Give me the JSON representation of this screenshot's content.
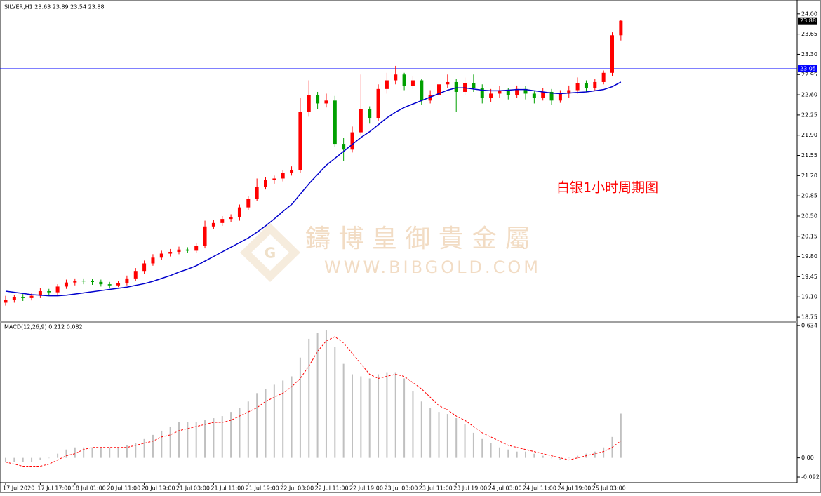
{
  "chart_data": [
    {
      "type": "candlestick",
      "title": "SILVER,H1  23.63 23.89 23.54 23.88",
      "annotation": "白银1小时周期图",
      "watermark_title": "鑄 博 皇 御 貴 金 屬",
      "watermark_url": "WWW.BIBGOLD.COM",
      "up_color": "#ff0000",
      "down_color": "#00a000",
      "open": [
        19.0,
        19.05,
        19.1,
        19.08,
        19.12,
        19.2,
        19.18,
        19.28,
        19.35,
        19.38,
        19.37,
        19.36,
        19.32,
        19.3,
        19.34,
        19.42,
        19.55,
        19.68,
        19.78,
        19.85,
        19.88,
        19.92,
        19.9,
        19.98,
        20.32,
        20.38,
        20.45,
        20.48,
        20.65,
        20.8,
        21.0,
        21.12,
        21.15,
        21.25,
        21.3,
        22.3,
        22.6,
        22.45,
        22.5,
        21.75,
        21.65,
        21.95,
        22.35,
        22.2,
        22.7,
        22.85,
        22.95,
        22.75,
        22.85,
        22.5,
        22.6,
        22.78,
        22.82,
        22.65,
        22.8,
        22.72,
        22.55,
        22.62,
        22.68,
        22.6,
        22.7,
        22.62,
        22.55,
        22.65,
        22.5,
        22.62,
        22.68,
        22.8,
        22.72,
        22.82,
        22.98,
        23.63
      ],
      "high": [
        19.12,
        19.14,
        19.15,
        19.16,
        19.25,
        19.24,
        19.32,
        19.4,
        19.42,
        19.42,
        19.41,
        19.4,
        19.36,
        19.38,
        19.47,
        19.6,
        19.73,
        19.84,
        19.9,
        19.93,
        19.97,
        19.96,
        20.03,
        20.42,
        20.43,
        20.5,
        20.53,
        20.7,
        20.85,
        21.15,
        21.18,
        21.2,
        21.3,
        21.36,
        22.55,
        22.85,
        22.65,
        22.62,
        22.58,
        21.85,
        22.05,
        22.95,
        22.4,
        22.78,
        22.98,
        23.1,
        22.98,
        22.92,
        22.88,
        22.68,
        22.85,
        22.95,
        22.88,
        22.9,
        22.95,
        22.78,
        22.7,
        22.75,
        22.72,
        22.76,
        22.75,
        22.66,
        22.72,
        22.7,
        22.68,
        22.76,
        22.9,
        22.85,
        22.88,
        23.02,
        23.68,
        23.89
      ],
      "low": [
        18.95,
        19.0,
        19.03,
        19.04,
        19.08,
        19.12,
        19.14,
        19.24,
        19.3,
        19.32,
        19.31,
        19.28,
        19.25,
        19.27,
        19.3,
        19.38,
        19.5,
        19.64,
        19.74,
        19.8,
        19.84,
        19.86,
        19.86,
        19.94,
        20.27,
        20.33,
        20.4,
        20.42,
        20.6,
        20.76,
        20.96,
        21.06,
        21.1,
        21.2,
        21.25,
        22.22,
        22.35,
        22.38,
        21.7,
        21.45,
        21.6,
        21.9,
        22.1,
        22.15,
        22.62,
        22.78,
        22.68,
        22.7,
        22.42,
        22.45,
        22.55,
        22.72,
        22.3,
        22.6,
        22.65,
        22.45,
        22.48,
        22.55,
        22.52,
        22.55,
        22.52,
        22.45,
        22.5,
        22.42,
        22.46,
        22.55,
        22.62,
        22.65,
        22.68,
        22.78,
        22.92,
        23.54
      ],
      "close": [
        19.05,
        19.1,
        19.08,
        19.12,
        19.2,
        19.18,
        19.28,
        19.35,
        19.38,
        19.37,
        19.36,
        19.32,
        19.3,
        19.34,
        19.42,
        19.55,
        19.68,
        19.78,
        19.85,
        19.88,
        19.92,
        19.9,
        19.98,
        20.32,
        20.38,
        20.45,
        20.48,
        20.65,
        20.8,
        21.0,
        21.12,
        21.15,
        21.25,
        21.3,
        22.3,
        22.6,
        22.45,
        22.5,
        21.75,
        21.65,
        21.95,
        22.35,
        22.2,
        22.7,
        22.85,
        22.95,
        22.75,
        22.85,
        22.5,
        22.6,
        22.78,
        22.82,
        22.65,
        22.8,
        22.72,
        22.55,
        22.62,
        22.68,
        22.6,
        22.7,
        22.62,
        22.55,
        22.65,
        22.5,
        22.62,
        22.68,
        22.8,
        22.72,
        22.82,
        22.98,
        23.63,
        23.88
      ],
      "ma": {
        "color": "#0000cc",
        "values": [
          19.2,
          19.18,
          19.16,
          19.14,
          19.13,
          19.12,
          19.12,
          19.13,
          19.15,
          19.17,
          19.19,
          19.21,
          19.23,
          19.25,
          19.27,
          19.3,
          19.33,
          19.37,
          19.42,
          19.47,
          19.53,
          19.58,
          19.64,
          19.72,
          19.8,
          19.88,
          19.96,
          20.04,
          20.12,
          20.22,
          20.33,
          20.45,
          20.58,
          20.7,
          20.88,
          21.06,
          21.22,
          21.38,
          21.5,
          21.62,
          21.74,
          21.86,
          21.96,
          22.08,
          22.2,
          22.3,
          22.38,
          22.44,
          22.5,
          22.56,
          22.62,
          22.68,
          22.72,
          22.72,
          22.7,
          22.68,
          22.67,
          22.67,
          22.68,
          22.69,
          22.69,
          22.67,
          22.65,
          22.63,
          22.62,
          22.63,
          22.64,
          22.65,
          22.67,
          22.69,
          22.74,
          22.82
        ]
      },
      "hline": {
        "value": 23.05,
        "label": "23.05",
        "color": "#0000ff"
      },
      "last_price": {
        "value": 23.88,
        "label": "23.88"
      },
      "ylim": [
        18.69,
        24.18
      ],
      "yticks": [
        {
          "value": 24.0,
          "label": "24.00"
        },
        {
          "value": 23.65,
          "label": "23.65"
        },
        {
          "value": 23.3,
          "label": "23.30"
        },
        {
          "value": 22.95,
          "label": "22.95"
        },
        {
          "value": 22.6,
          "label": "22.60"
        },
        {
          "value": 22.25,
          "label": "22.25"
        },
        {
          "value": 21.9,
          "label": "21.90"
        },
        {
          "value": 21.55,
          "label": "21.55"
        },
        {
          "value": 21.2,
          "label": "21.20"
        },
        {
          "value": 20.85,
          "label": "20.85"
        },
        {
          "value": 20.5,
          "label": "20.50"
        },
        {
          "value": 20.15,
          "label": "20.15"
        },
        {
          "value": 19.8,
          "label": "19.80"
        },
        {
          "value": 19.45,
          "label": "19.45"
        },
        {
          "value": 19.1,
          "label": "19.10"
        },
        {
          "value": 18.75,
          "label": "18.75"
        }
      ]
    },
    {
      "type": "macd",
      "title": "MACD(12,26,9) 0.212 0.082",
      "categories": [
        "17 Jul 2020",
        null,
        null,
        null,
        "17 Jul 17:00",
        null,
        null,
        null,
        "18 Jul 01:00",
        null,
        null,
        null,
        "20 Jul 11:00",
        null,
        null,
        null,
        "20 Jul 19:00",
        null,
        null,
        null,
        "21 Jul 03:00",
        null,
        null,
        null,
        "21 Jul 11:00",
        null,
        null,
        null,
        "21 Jul 19:00",
        null,
        null,
        null,
        "22 Jul 03:00",
        null,
        null,
        null,
        "22 Jul 11:00",
        null,
        null,
        null,
        "22 Jul 19:00",
        null,
        null,
        null,
        "23 Jul 03:00",
        null,
        null,
        null,
        "23 Jul 11:00",
        null,
        null,
        null,
        "23 Jul 19:00",
        null,
        null,
        null,
        "24 Jul 03:00",
        null,
        null,
        null,
        "24 Jul 11:00",
        null,
        null,
        null,
        "24 Jul 19:00",
        null,
        null,
        null,
        "25 Jul 03:00",
        null,
        null,
        null
      ],
      "hist_color": "#c0c0c0",
      "signal_color": "#ff0000",
      "values": [
        -0.02,
        -0.02,
        -0.02,
        -0.02,
        -0.01,
        0.0,
        0.02,
        0.04,
        0.05,
        0.05,
        0.05,
        0.05,
        0.05,
        0.05,
        0.06,
        0.07,
        0.09,
        0.11,
        0.13,
        0.15,
        0.17,
        0.17,
        0.17,
        0.18,
        0.19,
        0.2,
        0.22,
        0.24,
        0.27,
        0.31,
        0.33,
        0.35,
        0.37,
        0.39,
        0.48,
        0.57,
        0.6,
        0.61,
        0.53,
        0.45,
        0.4,
        0.39,
        0.38,
        0.4,
        0.41,
        0.41,
        0.38,
        0.32,
        0.27,
        0.24,
        0.22,
        0.21,
        0.19,
        0.16,
        0.12,
        0.09,
        0.07,
        0.05,
        0.04,
        0.03,
        0.03,
        0.02,
        0.01,
        0.0,
        -0.01,
        0.0,
        0.01,
        0.02,
        0.03,
        0.05,
        0.1,
        0.212
      ],
      "signal": [
        -0.02,
        -0.03,
        -0.04,
        -0.04,
        -0.04,
        -0.03,
        -0.01,
        0.01,
        0.02,
        0.04,
        0.05,
        0.05,
        0.05,
        0.05,
        0.05,
        0.06,
        0.07,
        0.08,
        0.1,
        0.11,
        0.13,
        0.14,
        0.15,
        0.16,
        0.17,
        0.17,
        0.18,
        0.2,
        0.22,
        0.24,
        0.27,
        0.29,
        0.31,
        0.34,
        0.38,
        0.44,
        0.51,
        0.56,
        0.58,
        0.55,
        0.5,
        0.45,
        0.4,
        0.38,
        0.39,
        0.4,
        0.39,
        0.36,
        0.33,
        0.29,
        0.25,
        0.23,
        0.2,
        0.18,
        0.15,
        0.12,
        0.1,
        0.08,
        0.06,
        0.05,
        0.04,
        0.03,
        0.02,
        0.01,
        0.0,
        -0.01,
        0.0,
        0.01,
        0.02,
        0.03,
        0.05,
        0.082
      ],
      "ylim": [
        -0.102,
        0.647
      ],
      "yticks": [
        0.634,
        {
          "value": 0,
          "label": "0.00"
        },
        -0.092
      ]
    }
  ]
}
